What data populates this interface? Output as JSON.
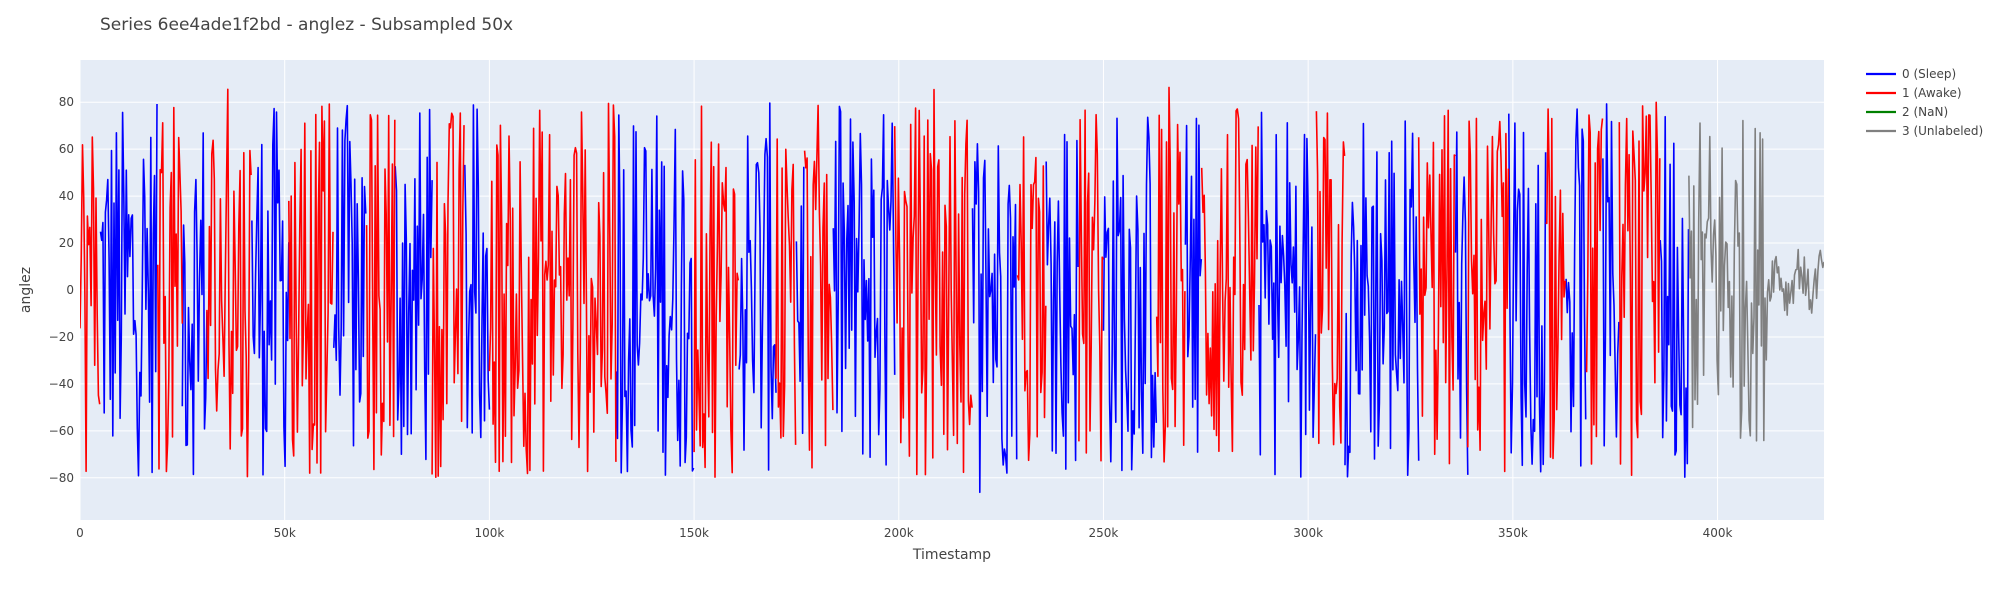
{
  "chart_data": {
    "type": "line",
    "title": "Series 6ee4ade1f2bd - anglez - Subsampled 50x",
    "xlabel": "Timestamp",
    "ylabel": "anglez",
    "xlim": [
      0,
      426000
    ],
    "ylim": [
      -98,
      98
    ],
    "x_ticks": [
      0,
      50000,
      100000,
      150000,
      200000,
      250000,
      300000,
      350000,
      400000
    ],
    "x_tick_labels": [
      "0",
      "50k",
      "100k",
      "150k",
      "200k",
      "250k",
      "300k",
      "350k",
      "400k"
    ],
    "y_ticks": [
      -80,
      -60,
      -40,
      -20,
      0,
      20,
      40,
      60,
      80
    ],
    "y_tick_labels": [
      "−80",
      "−60",
      "−40",
      "−20",
      "0",
      "20",
      "40",
      "60",
      "80"
    ],
    "grid": true,
    "legend_position": "top-right",
    "series": [
      {
        "name": "0 (Sleep)",
        "color": "#0000ff",
        "segments": [
          [
            5000,
            19000
          ],
          [
            25000,
            31000
          ],
          [
            42000,
            51000
          ],
          [
            62000,
            70000
          ],
          [
            77000,
            86000
          ],
          [
            94000,
            100000
          ],
          [
            131000,
            150000
          ],
          [
            161000,
            170000
          ],
          [
            175000,
            177000
          ],
          [
            184000,
            199000
          ],
          [
            218000,
            229000
          ],
          [
            236000,
            244000
          ],
          [
            250000,
            263000
          ],
          [
            270000,
            274000
          ],
          [
            288000,
            302000
          ],
          [
            309000,
            327000
          ],
          [
            336000,
            339000
          ],
          [
            349000,
            358000
          ],
          [
            363000,
            368000
          ],
          [
            372000,
            376000
          ],
          [
            386000,
            393000
          ]
        ]
      },
      {
        "name": "1 (Awake)",
        "color": "#ff0000",
        "segments": [
          [
            0,
            5000
          ],
          [
            19000,
            25000
          ],
          [
            31000,
            42000
          ],
          [
            51000,
            62000
          ],
          [
            70000,
            77000
          ],
          [
            86000,
            94000
          ],
          [
            100000,
            131000
          ],
          [
            150000,
            161000
          ],
          [
            170000,
            175000
          ],
          [
            177000,
            184000
          ],
          [
            199000,
            218000
          ],
          [
            229000,
            236000
          ],
          [
            244000,
            250000
          ],
          [
            263000,
            270000
          ],
          [
            274000,
            288000
          ],
          [
            302000,
            309000
          ],
          [
            327000,
            336000
          ],
          [
            339000,
            349000
          ],
          [
            358000,
            363000
          ],
          [
            368000,
            372000
          ],
          [
            376000,
            386000
          ]
        ]
      },
      {
        "name": "2 (NaN)",
        "color": "#008000",
        "segments": []
      },
      {
        "name": "3 (Unlabeled)",
        "color": "#808080",
        "segments": [
          [
            393000,
            426000
          ]
        ]
      }
    ]
  }
}
